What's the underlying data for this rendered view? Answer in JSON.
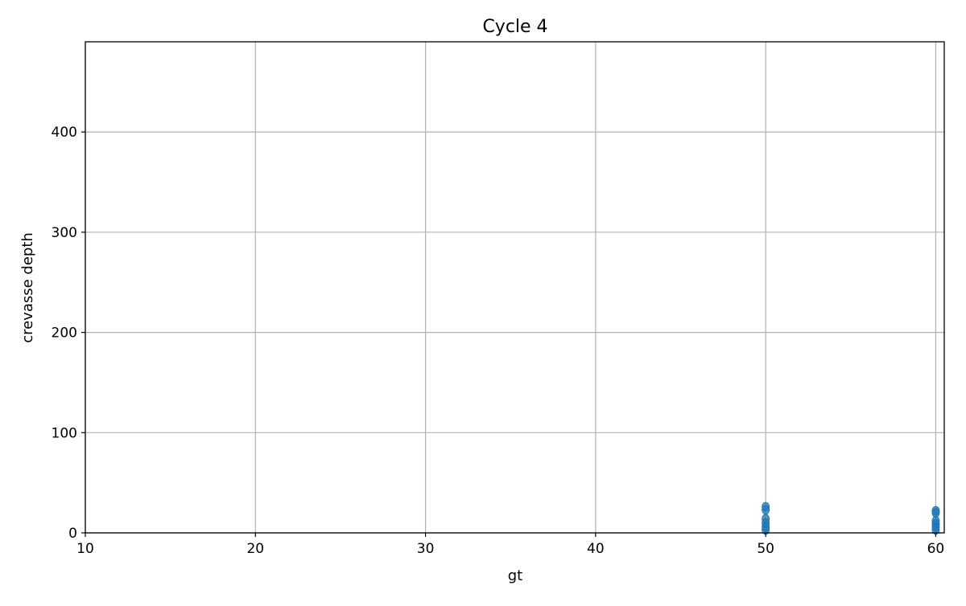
{
  "chart_data": {
    "type": "scatter",
    "title": "Cycle 4",
    "xlabel": "gt",
    "ylabel": "crevasse depth",
    "xlim": [
      10,
      60.5
    ],
    "ylim": [
      0,
      490
    ],
    "xticks": [
      10,
      20,
      30,
      40,
      50,
      60
    ],
    "yticks": [
      0,
      100,
      200,
      300,
      400
    ],
    "grid": true,
    "series": [
      {
        "color": "#1f77b4",
        "points": [
          {
            "x": 50,
            "y": 26
          },
          {
            "x": 50,
            "y": 23
          },
          {
            "x": 50,
            "y": 14
          },
          {
            "x": 50,
            "y": 10
          },
          {
            "x": 50,
            "y": 6
          },
          {
            "x": 50,
            "y": 3
          },
          {
            "x": 60,
            "y": 22
          },
          {
            "x": 60,
            "y": 20
          },
          {
            "x": 60,
            "y": 12
          },
          {
            "x": 60,
            "y": 9
          },
          {
            "x": 60,
            "y": 6
          },
          {
            "x": 60,
            "y": 3
          }
        ]
      }
    ]
  }
}
